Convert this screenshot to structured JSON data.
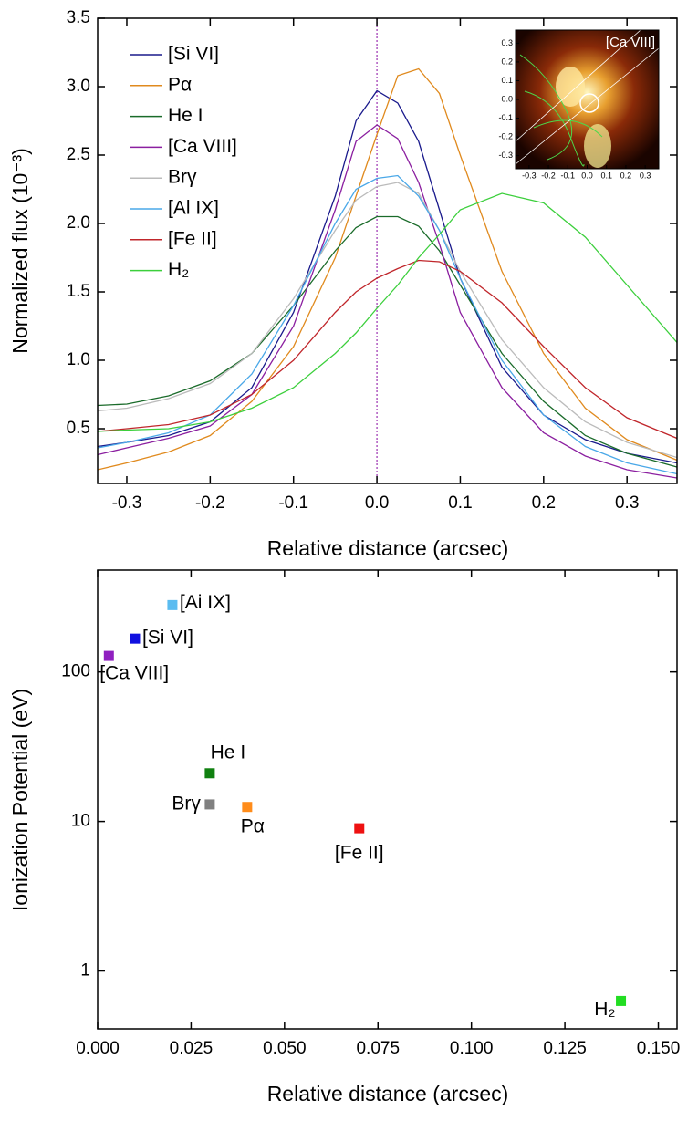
{
  "chart_data": [
    {
      "type": "line",
      "xlabel": "Relative distance (arcsec)",
      "ylabel": "Normalized flux (10⁻³)",
      "xlim": [
        -0.335,
        0.36
      ],
      "ylim": [
        0.1,
        3.5
      ],
      "xticks": [
        -0.3,
        -0.2,
        -0.1,
        {
          "value": 0,
          "label": "0.0"
        },
        0.1,
        0.2,
        0.3
      ],
      "yticks": [
        0.5,
        {
          "value": 1,
          "label": "1.0"
        },
        1.5,
        {
          "value": 2,
          "label": "2.0"
        },
        2.5,
        {
          "value": 3,
          "label": "3.0"
        },
        3.5
      ],
      "vline": 0,
      "x": [
        -0.335,
        -0.3,
        -0.25,
        -0.2,
        -0.15,
        -0.1,
        -0.05,
        -0.025,
        0,
        0.025,
        0.05,
        0.075,
        0.1,
        0.15,
        0.2,
        0.25,
        0.3,
        0.36
      ],
      "series": [
        {
          "name": "[Si VI]",
          "color": "#1a1a8c",
          "values": [
            0.37,
            0.4,
            0.45,
            0.55,
            0.8,
            1.35,
            2.2,
            2.75,
            2.97,
            2.88,
            2.6,
            2.1,
            1.6,
            0.95,
            0.6,
            0.42,
            0.32,
            0.25
          ]
        },
        {
          "name": "Pα",
          "color": "#e08a1e",
          "values": [
            0.2,
            0.25,
            0.33,
            0.45,
            0.7,
            1.1,
            1.75,
            2.2,
            2.65,
            3.08,
            3.13,
            2.95,
            2.5,
            1.65,
            1.05,
            0.65,
            0.42,
            0.27
          ]
        },
        {
          "name": "He I",
          "color": "#1a6b2a",
          "values": [
            0.67,
            0.68,
            0.74,
            0.85,
            1.05,
            1.4,
            1.8,
            1.97,
            2.05,
            2.05,
            1.98,
            1.8,
            1.55,
            1.05,
            0.7,
            0.45,
            0.32,
            0.22
          ]
        },
        {
          "name": "[Ca VIII]",
          "color": "#8b1fa0",
          "values": [
            0.31,
            0.36,
            0.43,
            0.52,
            0.75,
            1.25,
            2.1,
            2.6,
            2.72,
            2.62,
            2.3,
            1.85,
            1.35,
            0.8,
            0.47,
            0.3,
            0.2,
            0.14
          ]
        },
        {
          "name": "Brγ",
          "color": "#bbbbbb",
          "values": [
            0.63,
            0.65,
            0.72,
            0.83,
            1.05,
            1.45,
            1.95,
            2.17,
            2.27,
            2.3,
            2.22,
            1.95,
            1.65,
            1.15,
            0.8,
            0.55,
            0.4,
            0.29
          ]
        },
        {
          "name": "[Al IX]",
          "color": "#4aa8e8",
          "values": [
            0.36,
            0.4,
            0.47,
            0.6,
            0.9,
            1.4,
            2.0,
            2.25,
            2.33,
            2.35,
            2.2,
            1.95,
            1.6,
            1.0,
            0.6,
            0.37,
            0.25,
            0.17
          ]
        },
        {
          "name": "[Fe II]",
          "color": "#c0262b",
          "values": [
            0.48,
            0.5,
            0.53,
            0.6,
            0.75,
            1.0,
            1.35,
            1.5,
            1.6,
            1.67,
            1.73,
            1.72,
            1.65,
            1.42,
            1.1,
            0.8,
            0.58,
            0.43
          ]
        },
        {
          "name": "H₂",
          "color": "#3ccf3c",
          "values": [
            0.48,
            0.49,
            0.5,
            0.55,
            0.65,
            0.8,
            1.05,
            1.2,
            1.38,
            1.55,
            1.75,
            1.92,
            2.1,
            2.22,
            2.15,
            1.9,
            1.55,
            1.13
          ]
        }
      ],
      "inset": {
        "label": "[Ca VIII]",
        "xlim": [
          -0.37,
          0.37
        ],
        "ylim": [
          -0.37,
          0.37
        ],
        "xticks": [
          -0.3,
          -0.2,
          -0.1,
          {
            "value": 0,
            "label": "0.0"
          },
          0.1,
          0.2,
          0.3
        ],
        "yticks": [
          -0.3,
          -0.2,
          -0.1,
          {
            "value": 0,
            "label": "0.0"
          },
          0.1,
          0.2,
          0.3
        ]
      }
    },
    {
      "type": "scatter",
      "xlabel": "Relative distance (arcsec)",
      "ylabel": "Ionization Potential (eV)",
      "log_y": true,
      "xlim": [
        0,
        0.155
      ],
      "ylim": [
        0.41,
        480
      ],
      "xticks": [
        {
          "value": 0,
          "label": "0.000"
        },
        0.025,
        {
          "value": 0.05,
          "label": "0.050"
        },
        0.075,
        {
          "value": 0.1,
          "label": "0.100"
        },
        0.125,
        {
          "value": 0.15,
          "label": "0.150"
        }
      ],
      "yticks": [
        1,
        10,
        100
      ],
      "labels": [
        "[Ai IX]",
        "[Si VI]",
        "[Ca VIII]",
        "He I",
        "Brγ",
        "Pα",
        "[Fe II]",
        "H₂"
      ],
      "x": [
        0.02,
        0.01,
        0.003,
        0.03,
        0.03,
        0.04,
        0.07,
        0.14
      ],
      "values": [
        280,
        167,
        128,
        21,
        13,
        12.5,
        9,
        0.63
      ],
      "colors": [
        "#5bbcf0",
        "#1010e0",
        "#9020c0",
        "#108010",
        "#808080",
        "#ff8c1a",
        "#ee1111",
        "#22dd22"
      ]
    }
  ]
}
